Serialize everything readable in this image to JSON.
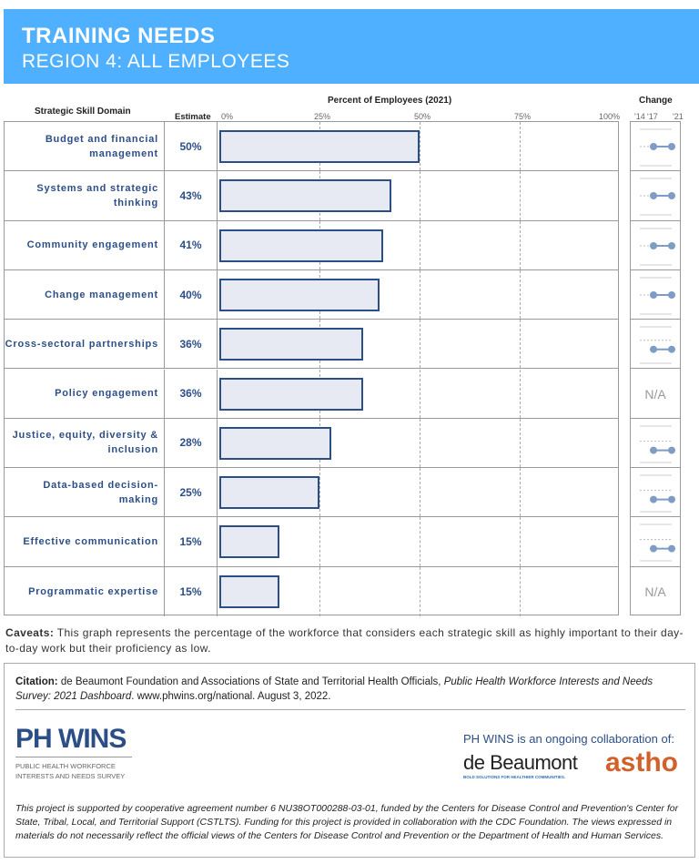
{
  "header": {
    "title": "TRAINING NEEDS",
    "subtitle": "REGION 4: ALL EMPLOYEES",
    "color": "#4eb0ff"
  },
  "chart_data": {
    "type": "bar",
    "title": "Percent of Employees (2021)",
    "column_headers": {
      "domain": "Strategic Skill Domain",
      "estimate": "Estimate",
      "change": "Change"
    },
    "ticks": [
      "0%",
      "25%",
      "50%",
      "75%",
      "100%"
    ],
    "xlim": [
      0,
      100
    ],
    "change_ticks": [
      "'14",
      "'17",
      "'21"
    ],
    "categories": [
      "Budget and financial management",
      "Systems and strategic thinking",
      "Community engagement",
      "Change management",
      "Cross-sectoral partnerships",
      "Policy engagement",
      "Justice, equity, diversity & inclusion",
      "Data-based decision-making",
      "Effective communication",
      "Programmatic expertise"
    ],
    "values": [
      50,
      43,
      41,
      40,
      36,
      36,
      28,
      25,
      15,
      15
    ],
    "labels": [
      "50%",
      "43%",
      "41%",
      "40%",
      "36%",
      "36%",
      "28%",
      "25%",
      "15%",
      "15%"
    ],
    "change": [
      {
        "na": false,
        "level": 0.5
      },
      {
        "na": false,
        "level": 0.5
      },
      {
        "na": false,
        "level": 0.5
      },
      {
        "na": false,
        "level": 0.5
      },
      {
        "na": false,
        "level": 0.65
      },
      {
        "na": true,
        "text": "N/A"
      },
      {
        "na": false,
        "level": 0.7
      },
      {
        "na": false,
        "level": 0.7
      },
      {
        "na": false,
        "level": 0.7
      },
      {
        "na": true,
        "text": "N/A"
      }
    ],
    "bar_color": "#2c4e86",
    "bar_fill": "#e8eaf3",
    "dot_color": "#7f9cc4"
  },
  "caveats": {
    "label": "Caveats:",
    "text": " This graph represents the percentage of the workforce that considers each strategic skill as highly important to their day-to-day work but their proficiency as low."
  },
  "citation": {
    "label": "Citation:",
    "text1": " de Beaumont Foundation and Associations of State and Territorial Health Officials, ",
    "title": "Public Health Workforce Interests and Needs Survey: 2021 Dashboard",
    "text2": ". www.phwins.org/national. August 3, 2022."
  },
  "logos": {
    "phwins": "PH WINS",
    "phwins_sub1": "PUBLIC HEALTH WORKFORCE",
    "phwins_sub2": "INTERESTS AND NEEDS SURVEY",
    "collab": "PH WINS is an ongoing collaboration of:",
    "debeaumont": "de Beaumont",
    "debeaumont_sub": "BOLD SOLUTIONS FOR HEALTHIER COMMUNITIES.",
    "astho": "astho"
  },
  "support": "This project is supported by cooperative agreement number 6 NU38OT000288-03-01, funded by the Centers for Disease Control and Prevention's Center for State, Tribal, Local, and Territorial Support (CSTLTS). Funding for this project is provided in collaboration with the CDC Foundation. The views expressed in materials do not necessarily reflect the official views of the Centers for Disease Control and Prevention or the Department of Health and Human Services."
}
